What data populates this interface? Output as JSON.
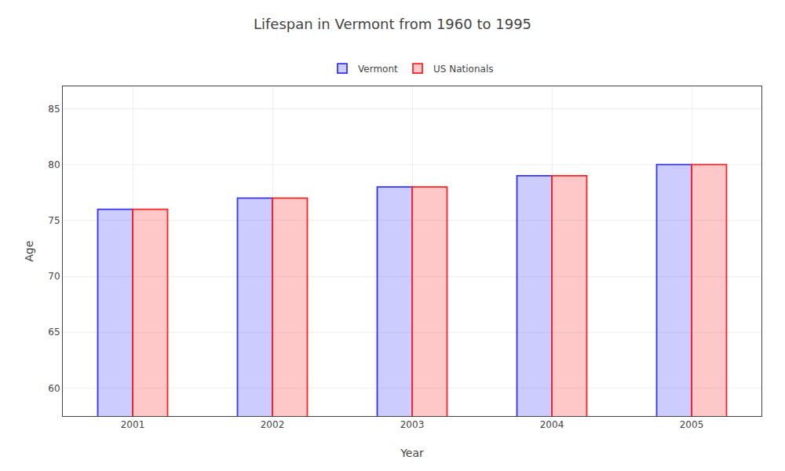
{
  "chart_data": {
    "type": "bar",
    "title": "Lifespan in Vermont from 1960 to 1995",
    "xlabel": "Year",
    "ylabel": "Age",
    "categories": [
      2001,
      2002,
      2003,
      2004,
      2005
    ],
    "series": [
      {
        "name": "Vermont",
        "color": "#3333ff",
        "values": [
          76,
          77,
          78,
          79,
          80
        ]
      },
      {
        "name": "US Nationals",
        "color": "#ff2222",
        "values": [
          76,
          77,
          78,
          79,
          80
        ]
      }
    ],
    "ylim": [
      57.5,
      87
    ],
    "yticks": [
      60,
      65,
      70,
      75,
      80,
      85
    ],
    "grid": true,
    "legend": "top"
  }
}
